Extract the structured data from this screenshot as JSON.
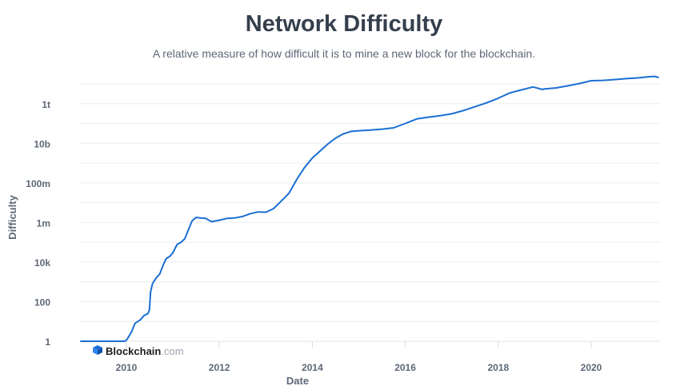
{
  "chart_data": {
    "type": "line",
    "title": "Network Difficulty",
    "subtitle": "A relative measure of how difficult it is to mine a new block for the blockchain.",
    "xlabel": "Date",
    "ylabel": "Difficulty",
    "y_scale": "log",
    "ylim": [
      1,
      10000000000000.0
    ],
    "xlim": [
      "2009-01-03",
      "2021-06-15"
    ],
    "y_ticks": [
      {
        "value": 1,
        "label": "1"
      },
      {
        "value": 100,
        "label": "100"
      },
      {
        "value": 10000,
        "label": "10k"
      },
      {
        "value": 1000000,
        "label": "1m"
      },
      {
        "value": 100000000,
        "label": "100m"
      },
      {
        "value": 10000000000,
        "label": "10b"
      },
      {
        "value": 1000000000000,
        "label": "1t"
      }
    ],
    "x_ticks": [
      "2010",
      "2012",
      "2014",
      "2016",
      "2018",
      "2020"
    ],
    "grid": true,
    "line_color": "#1a6fd1",
    "series": [
      {
        "name": "",
        "points": [
          [
            "2009-01-03",
            1
          ],
          [
            "2009-12-20",
            1
          ],
          [
            "2010-01-05",
            1.2
          ],
          [
            "2010-02-10",
            3
          ],
          [
            "2010-03-10",
            8
          ],
          [
            "2010-04-20",
            12
          ],
          [
            "2010-05-20",
            20
          ],
          [
            "2010-06-20",
            25
          ],
          [
            "2010-07-01",
            40
          ],
          [
            "2010-07-10",
            300
          ],
          [
            "2010-07-25",
            800
          ],
          [
            "2010-08-20",
            1500
          ],
          [
            "2010-09-20",
            2500
          ],
          [
            "2010-10-20",
            8000
          ],
          [
            "2010-11-10",
            15000
          ],
          [
            "2010-12-10",
            20000
          ],
          [
            "2011-01-01",
            30000
          ],
          [
            "2011-02-05",
            80000
          ],
          [
            "2011-03-05",
            100000
          ],
          [
            "2011-04-05",
            150000
          ],
          [
            "2011-05-01",
            400000
          ],
          [
            "2011-06-01",
            1200000
          ],
          [
            "2011-07-01",
            1800000
          ],
          [
            "2011-08-10",
            1700000
          ],
          [
            "2011-09-15",
            1600000
          ],
          [
            "2011-11-01",
            1100000
          ],
          [
            "2012-01-01",
            1300000
          ],
          [
            "2012-03-01",
            1600000
          ],
          [
            "2012-05-01",
            1700000
          ],
          [
            "2012-07-01",
            2000000
          ],
          [
            "2012-09-01",
            2800000
          ],
          [
            "2012-11-01",
            3400000
          ],
          [
            "2013-01-01",
            3300000
          ],
          [
            "2013-03-01",
            5000000
          ],
          [
            "2013-05-01",
            12000000
          ],
          [
            "2013-07-01",
            30000000
          ],
          [
            "2013-09-01",
            150000000
          ],
          [
            "2013-11-01",
            600000000
          ],
          [
            "2014-01-01",
            1800000000
          ],
          [
            "2014-03-01",
            4000000000
          ],
          [
            "2014-05-01",
            9000000000
          ],
          [
            "2014-07-01",
            18000000000
          ],
          [
            "2014-09-01",
            30000000000
          ],
          [
            "2014-11-01",
            40000000000
          ],
          [
            "2015-01-01",
            43000000000
          ],
          [
            "2015-04-01",
            47000000000
          ],
          [
            "2015-07-01",
            52000000000
          ],
          [
            "2015-10-01",
            60000000000
          ],
          [
            "2016-01-01",
            100000000000
          ],
          [
            "2016-04-01",
            170000000000
          ],
          [
            "2016-07-01",
            210000000000
          ],
          [
            "2016-10-01",
            250000000000
          ],
          [
            "2017-01-01",
            310000000000
          ],
          [
            "2017-04-01",
            450000000000
          ],
          [
            "2017-07-01",
            700000000000
          ],
          [
            "2017-10-01",
            1100000000000
          ],
          [
            "2018-01-01",
            1900000000000
          ],
          [
            "2018-04-01",
            3500000000000
          ],
          [
            "2018-07-01",
            5000000000000
          ],
          [
            "2018-10-01",
            7000000000000
          ],
          [
            "2018-12-15",
            5200000000000
          ],
          [
            "2019-01-01",
            5600000000000
          ],
          [
            "2019-04-01",
            6300000000000
          ],
          [
            "2019-07-01",
            8000000000000
          ],
          [
            "2019-10-01",
            10500000000000
          ],
          [
            "2020-01-01",
            14500000000000
          ],
          [
            "2020-04-01",
            15000000000000
          ],
          [
            "2020-07-01",
            16500000000000
          ],
          [
            "2020-10-01",
            18500000000000
          ],
          [
            "2021-01-01",
            20000000000000
          ],
          [
            "2021-04-01",
            23000000000000
          ],
          [
            "2021-05-15",
            24000000000000
          ],
          [
            "2021-06-15",
            21000000000000
          ]
        ]
      }
    ]
  },
  "watermark": {
    "brand": "Blockchain",
    "suffix": ".com",
    "icon": "blockchain-logo-icon"
  }
}
